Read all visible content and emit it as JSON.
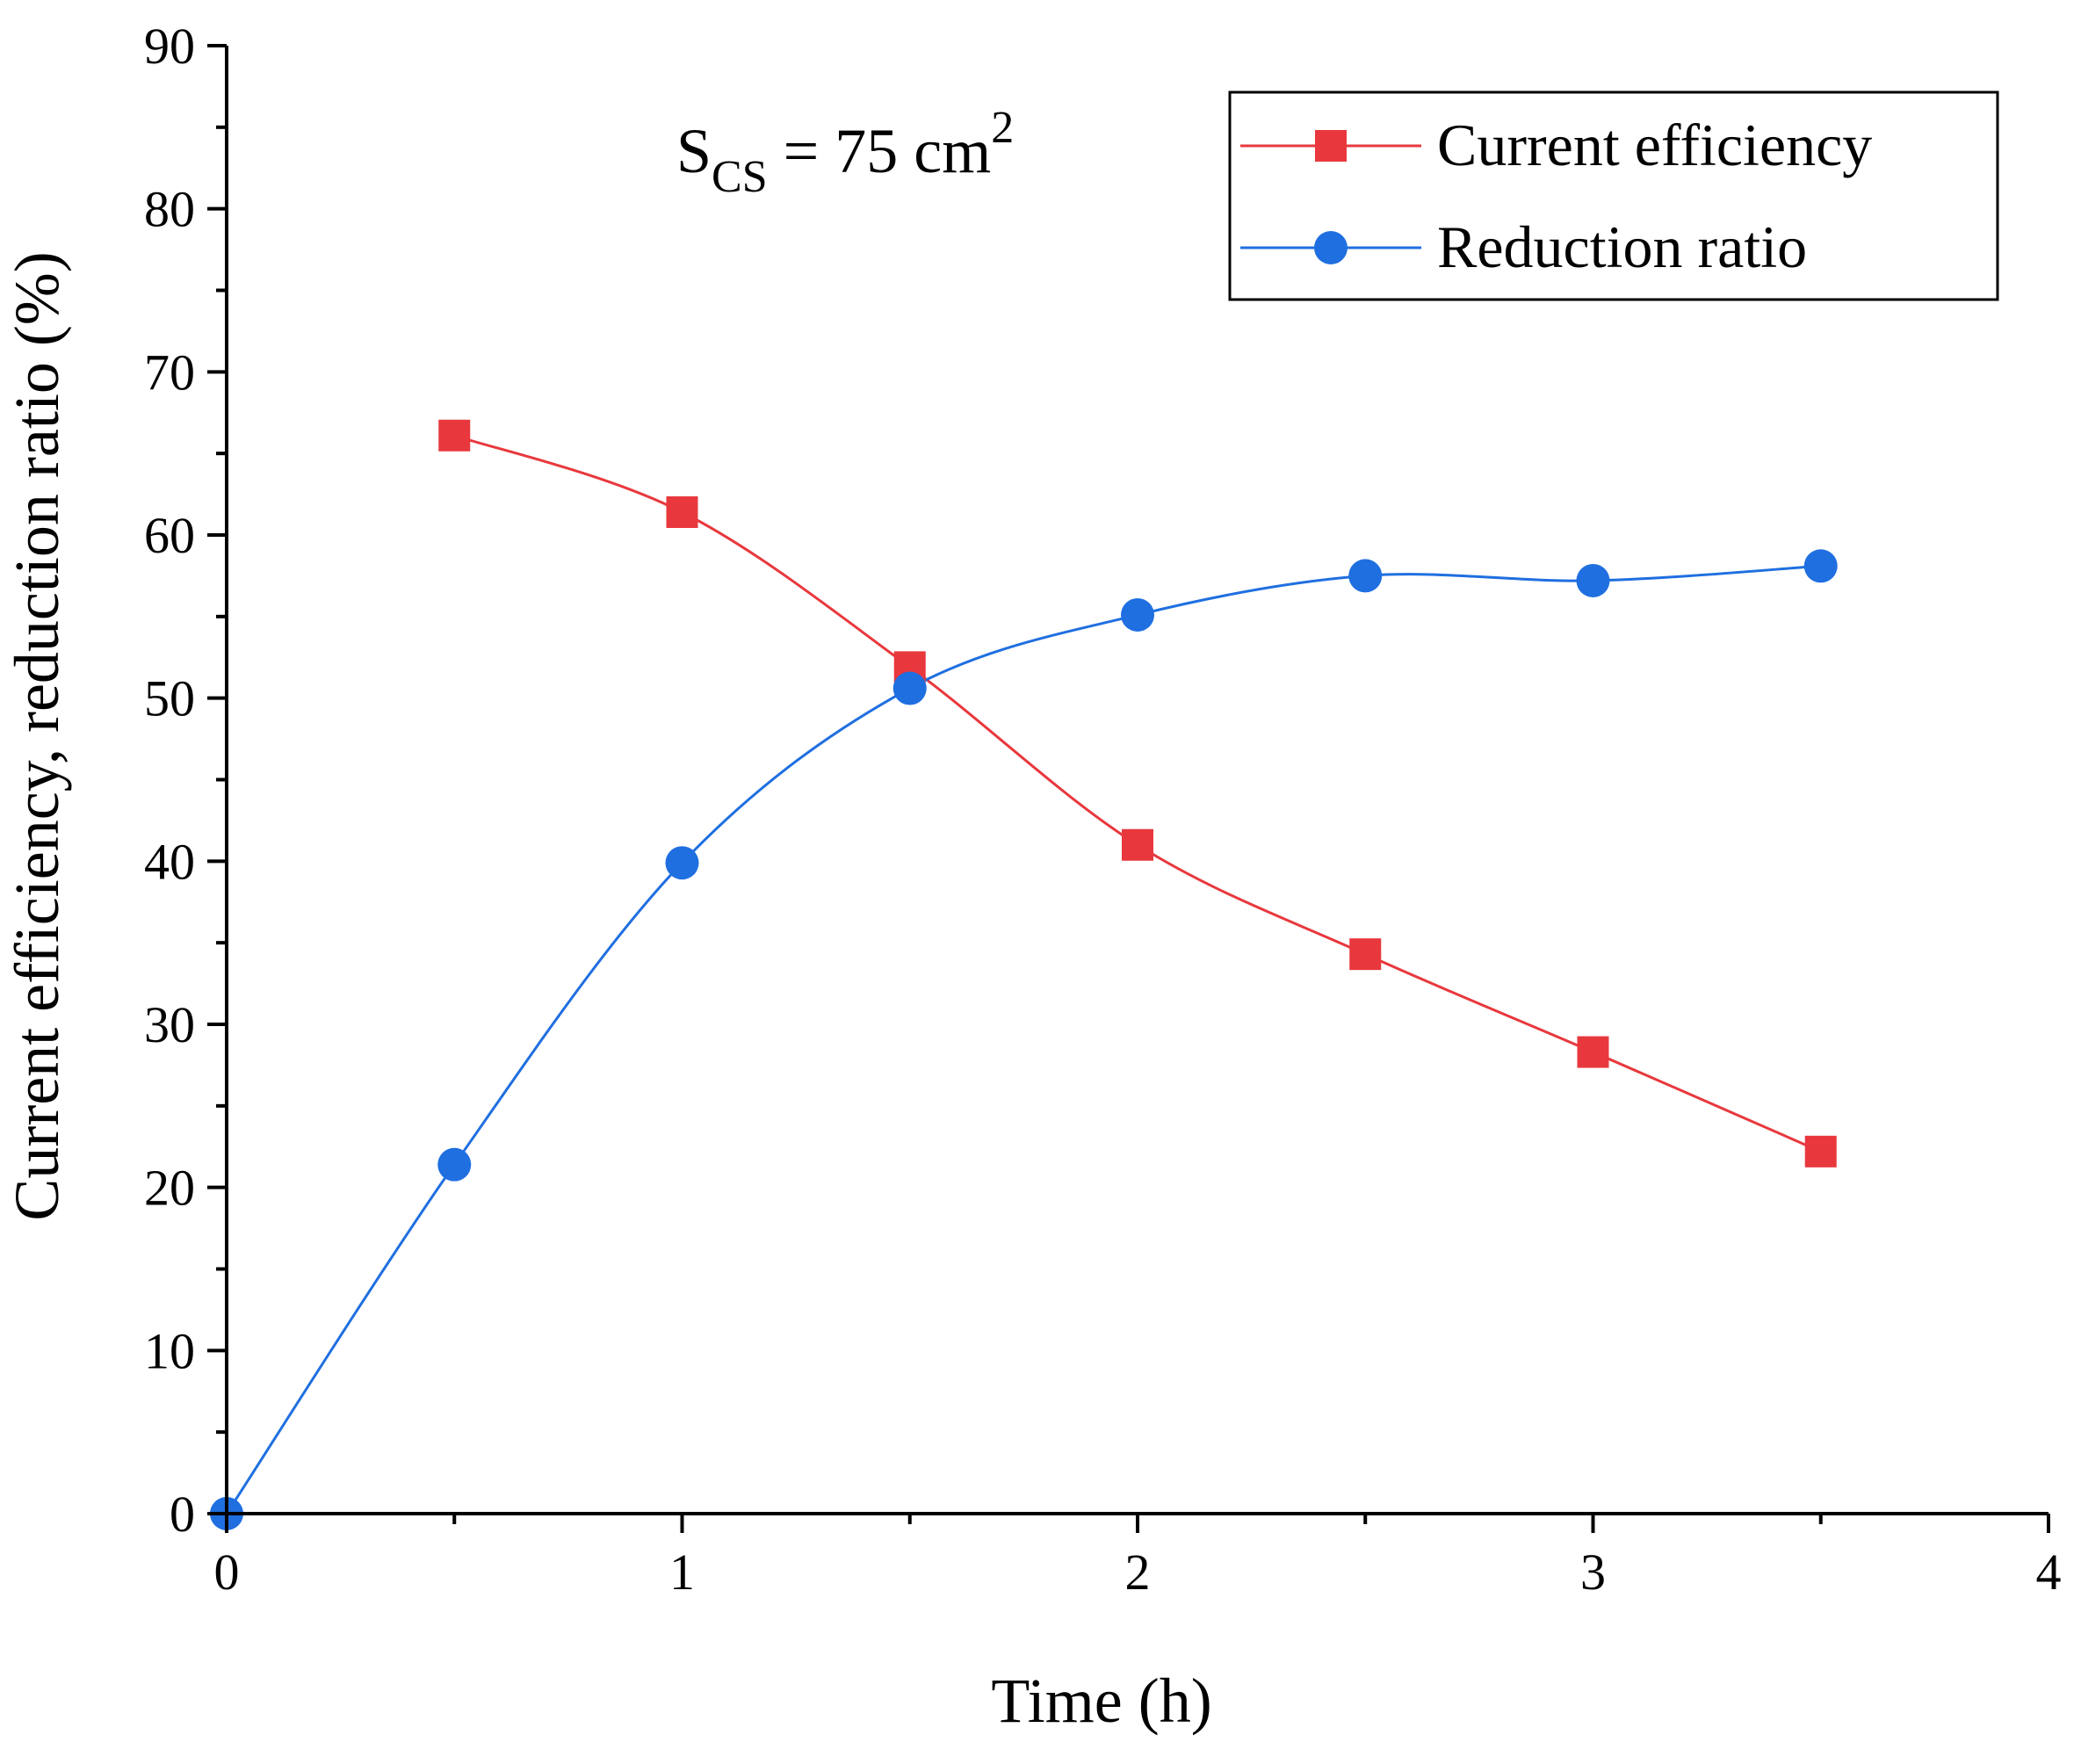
{
  "chart_data": {
    "type": "line",
    "title": "",
    "xlabel": "Time (h)",
    "ylabel": "Current efficiency, reduction ratio (%)",
    "xlim": [
      0,
      4
    ],
    "ylim": [
      0,
      90
    ],
    "x_ticks": [
      0,
      1,
      2,
      3,
      4
    ],
    "y_ticks": [
      0,
      10,
      20,
      30,
      40,
      50,
      60,
      70,
      80,
      90
    ],
    "grid": false,
    "legend_position": "top-right",
    "annotation": {
      "base": "S",
      "subscript": "CS",
      "rest": " = 75 cm",
      "superscript": "2"
    },
    "series": [
      {
        "name": "Current efficiency",
        "marker": "square",
        "color": "#e8383d",
        "x": [
          0.5,
          1.0,
          1.5,
          2.0,
          2.5,
          3.0,
          3.5
        ],
        "y": [
          66.1,
          61.4,
          51.9,
          41.0,
          34.3,
          28.3,
          22.2
        ]
      },
      {
        "name": "Reduction ratio",
        "marker": "circle",
        "color": "#1f6fe0",
        "x": [
          0,
          0.5,
          1.0,
          1.5,
          2.0,
          2.5,
          3.0,
          3.5
        ],
        "y": [
          0,
          21.4,
          39.9,
          50.6,
          55.1,
          57.5,
          57.2,
          58.1
        ]
      }
    ]
  }
}
